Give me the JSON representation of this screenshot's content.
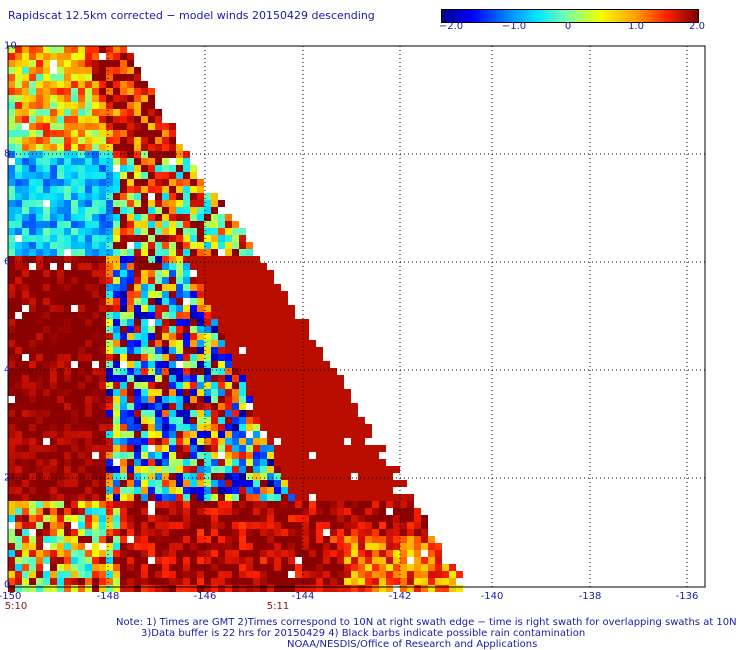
{
  "title": "Rapidscat 12.5km corrected − model winds 20150429 descending",
  "colorbar": {
    "ticks": [
      "−2.0",
      "−1.0",
      "0",
      "1.0",
      "2.0"
    ],
    "min": -2.0,
    "max": 2.0
  },
  "axes": {
    "lon_labels": [
      "-150",
      "-148",
      "-146",
      "-144",
      "-142",
      "-140",
      "-138",
      "-136"
    ],
    "lat_labels": [
      "0",
      "2",
      "4",
      "6",
      "8",
      "10"
    ],
    "time_labels": [
      "5:10",
      "5:11"
    ]
  },
  "notes": [
    "Note: 1) Times are GMT 2)Times correspond to 10N at right swath edge − time is right swath for overlapping swaths at 10N",
    "3)Data buffer is 22 hrs for 20150429 4) Black barbs indicate possible rain contamination",
    "NOAA/NESDIS/Office of Research and Applications"
  ],
  "colors": {
    "text": "#1a1aa6",
    "time": "#8b1010",
    "grid": "#000000",
    "dark_red": "#8b0000"
  }
}
